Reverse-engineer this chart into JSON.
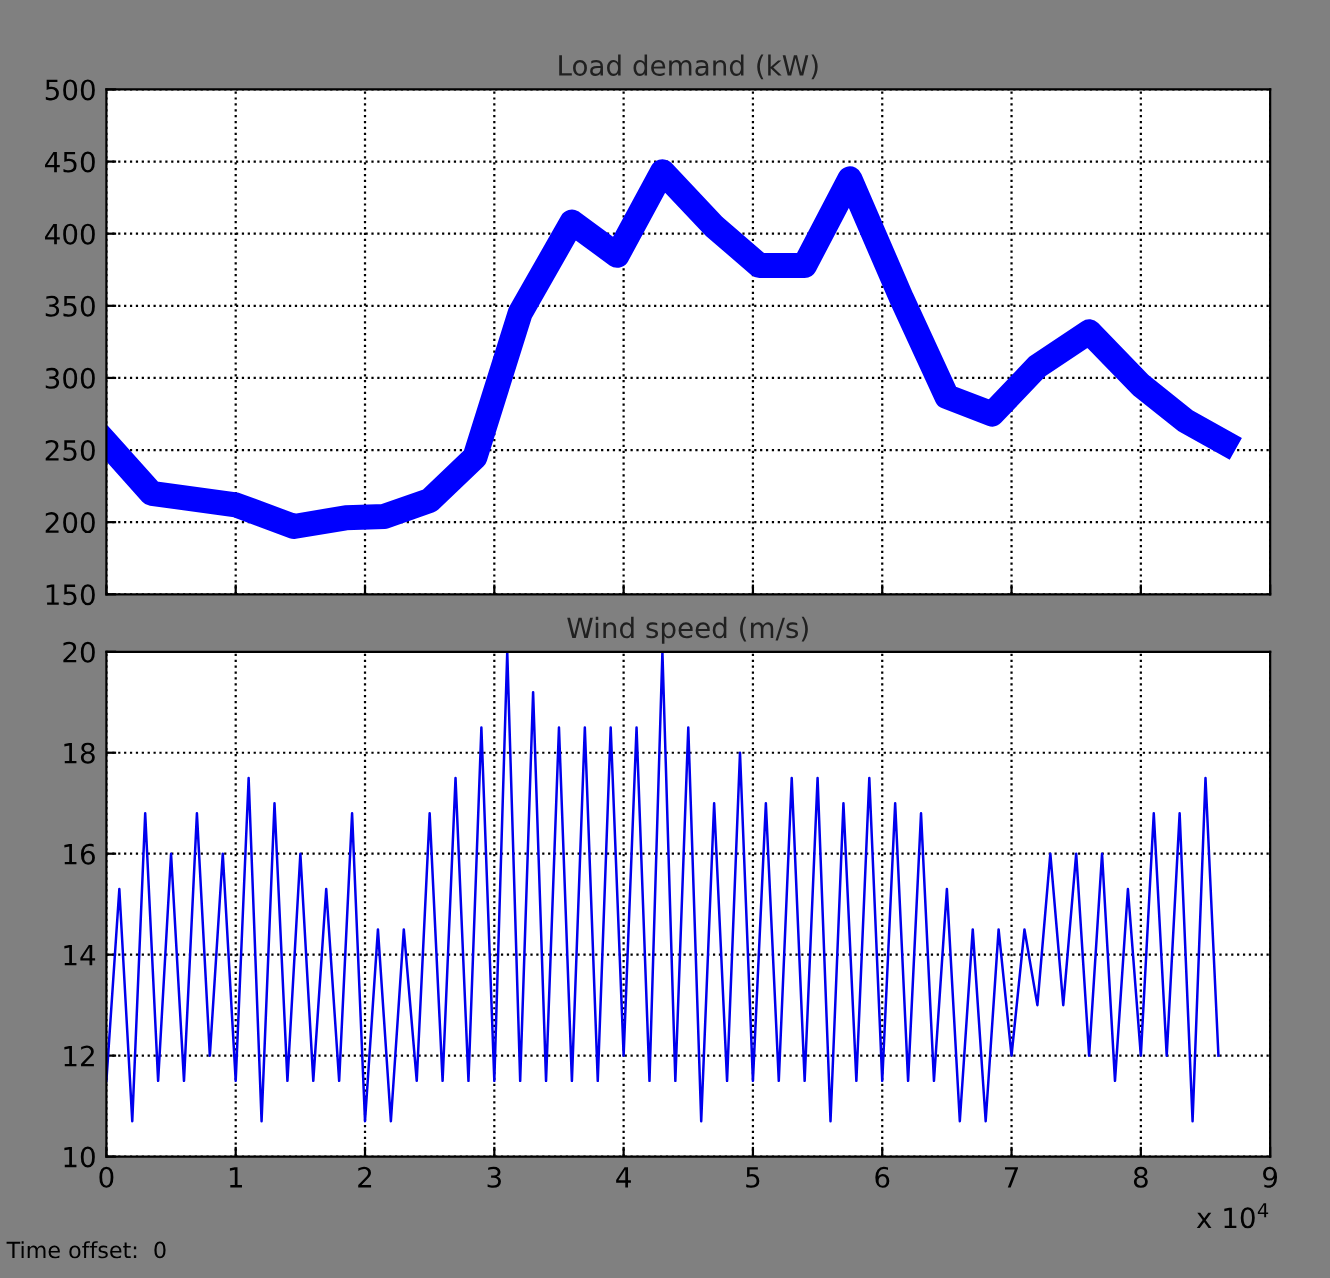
{
  "chart_data": [
    {
      "type": "line",
      "title": "Load demand (kW)",
      "x": [
        0,
        0.35,
        1.0,
        1.45,
        1.85,
        2.15,
        2.5,
        2.85,
        3.2,
        3.6,
        3.95,
        4.3,
        4.7,
        5.05,
        5.4,
        5.75,
        6.15,
        6.5,
        6.85,
        7.2,
        7.6,
        8.0,
        8.35,
        8.65
      ],
      "series": [
        {
          "color": "#0000ff",
          "values": [
            255,
            220,
            212,
            197,
            203,
            204,
            215,
            245,
            345,
            408,
            385,
            443,
            405,
            378,
            378,
            438,
            355,
            287,
            275,
            308,
            332,
            295,
            270,
            255
          ]
        }
      ],
      "xlim": [
        0,
        9
      ],
      "xticks": [
        0,
        1,
        2,
        3,
        4,
        5,
        6,
        7,
        8,
        9
      ],
      "ylim": [
        150,
        500
      ],
      "yticks": [
        150,
        200,
        250,
        300,
        350,
        400,
        450,
        500
      ],
      "grid": true,
      "tick_labels": "y"
    },
    {
      "type": "line",
      "title": "Wind speed (m/s)",
      "x": [
        0,
        0.1,
        0.2,
        0.3,
        0.4,
        0.5,
        0.6,
        0.7,
        0.8,
        0.9,
        1.0,
        1.1,
        1.2,
        1.3,
        1.4,
        1.5,
        1.6,
        1.7,
        1.8,
        1.9,
        2.0,
        2.1,
        2.2,
        2.3,
        2.4,
        2.5,
        2.6,
        2.7,
        2.8,
        2.9,
        3.0,
        3.1,
        3.2,
        3.3,
        3.4,
        3.5,
        3.6,
        3.7,
        3.8,
        3.9,
        4.0,
        4.1,
        4.2,
        4.3,
        4.4,
        4.5,
        4.6,
        4.7,
        4.8,
        4.9,
        5.0,
        5.1,
        5.2,
        5.3,
        5.4,
        5.5,
        5.6,
        5.7,
        5.8,
        5.9,
        6.0,
        6.1,
        6.2,
        6.3,
        6.4,
        6.5,
        6.6,
        6.7,
        6.8,
        6.9,
        7.0,
        7.1,
        7.2,
        7.3,
        7.4,
        7.5,
        7.6,
        7.7,
        7.8,
        7.9,
        8.0,
        8.1,
        8.2,
        8.3,
        8.4,
        8.5,
        8.6
      ],
      "series": [
        {
          "color": "#0000ee",
          "values": [
            11.5,
            15.3,
            10.7,
            16.8,
            11.5,
            16,
            11.5,
            16.8,
            12,
            16,
            11.5,
            17.5,
            10.7,
            17,
            11.5,
            16,
            11.5,
            15.3,
            11.5,
            16.8,
            10.7,
            14.5,
            10.7,
            14.5,
            11.5,
            16.8,
            11.5,
            17.5,
            11.5,
            18.5,
            11.5,
            20,
            11.5,
            19.2,
            11.5,
            18.5,
            11.5,
            18.5,
            11.5,
            18.5,
            12,
            18.5,
            11.5,
            20,
            11.5,
            18.5,
            10.7,
            17,
            11.5,
            18,
            11.5,
            17,
            11.5,
            17.5,
            11.5,
            17.5,
            10.7,
            17,
            11.5,
            17.5,
            11.5,
            17,
            11.5,
            16.8,
            11.5,
            15.3,
            10.7,
            14.5,
            10.7,
            14.5,
            12,
            14.5,
            13,
            16,
            13,
            16,
            12,
            16,
            11.5,
            15.3,
            12,
            16.8,
            12,
            16.8,
            10.7,
            17.5,
            12
          ]
        }
      ],
      "xlim": [
        0,
        9
      ],
      "xticks": [
        0,
        1,
        2,
        3,
        4,
        5,
        6,
        7,
        8,
        9
      ],
      "ylim": [
        10,
        20
      ],
      "yticks": [
        10,
        12,
        14,
        16,
        18,
        20
      ],
      "grid": true,
      "annotations": [
        "x 10$^{4}$",
        "Time offset:  0"
      ]
    }
  ]
}
